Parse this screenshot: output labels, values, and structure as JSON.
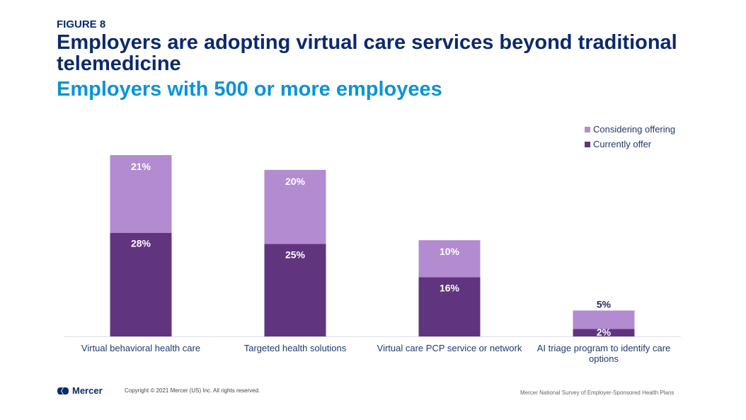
{
  "figure_label": "FIGURE 8",
  "title": "Employers are adopting virtual care services beyond traditional telemedicine",
  "subtitle": "Employers with 500 or more employees",
  "footer": {
    "logo_text": "Mercer",
    "copyright": "Copyright © 2021 Mercer (US) Inc. All rights reserved.",
    "source": "Mercer National Survey of Employer-Sponsored Health Plans"
  },
  "colors": {
    "currently_offer": "#61347f",
    "considering_offering": "#b28bd0",
    "title": "#0b2a6b",
    "subtitle": "#0a94d6"
  },
  "chart_data": {
    "type": "bar",
    "stacked": true,
    "title": "Employers are adopting virtual care services beyond traditional telemedicine",
    "subtitle": "Employers with 500 or more employees",
    "categories": [
      [
        "Virtual behavioral health care"
      ],
      [
        "Targeted health solutions"
      ],
      [
        "Virtual care PCP service or network"
      ],
      [
        "AI triage program to identify care",
        "options"
      ]
    ],
    "series": [
      {
        "name": "Currently offer",
        "values": [
          28,
          25,
          16,
          2
        ],
        "labels": [
          "28%",
          "25%",
          "16%",
          "2%"
        ]
      },
      {
        "name": "Considering offering",
        "values": [
          21,
          20,
          10,
          5
        ],
        "labels": [
          "21%",
          "20%",
          "10%",
          "5%"
        ]
      }
    ],
    "legend": [
      "Considering offering",
      "Currently offer"
    ],
    "legend_position": "top-right",
    "xlabel": "",
    "ylabel": "",
    "ylim": [
      0,
      49
    ],
    "grid": false,
    "unit": "%"
  }
}
